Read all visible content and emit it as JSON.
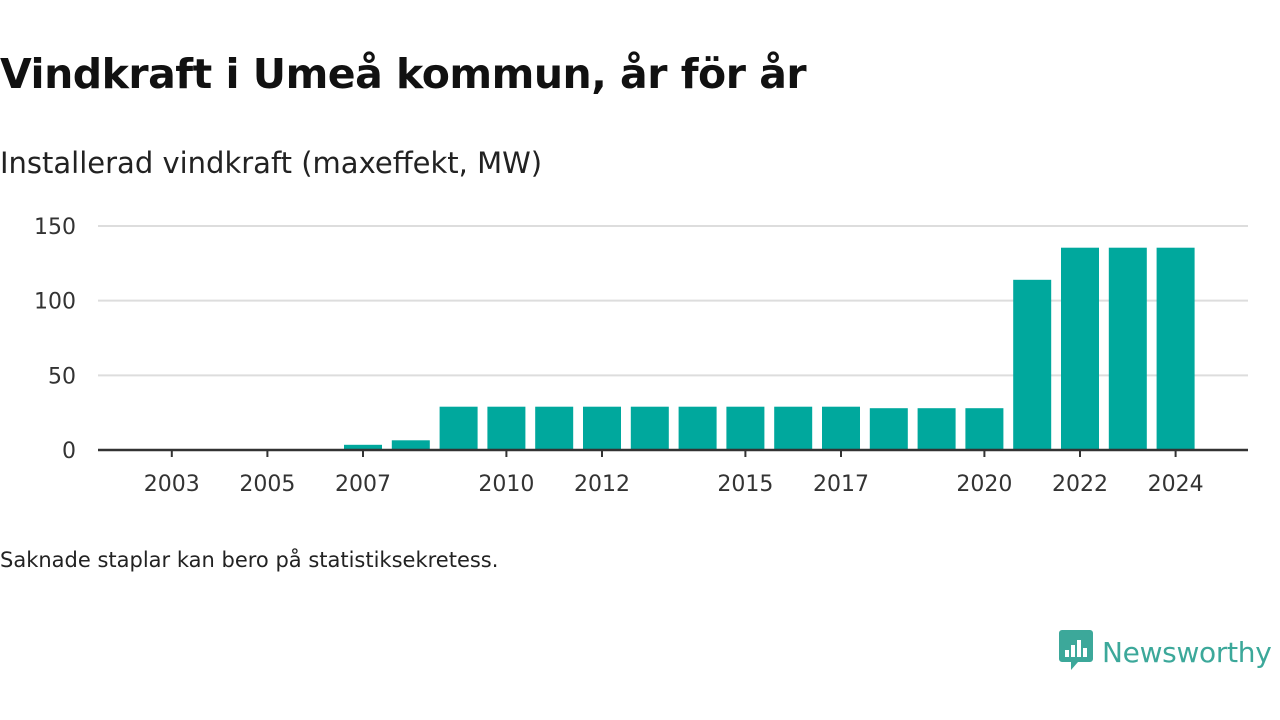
{
  "title": "Vindkraft i Umeå kommun, år för år",
  "subtitle": "Installerad vindkraft (maxeffekt, MW)",
  "footnote": "Saknade staplar kan bero på statistiksekretess.",
  "brand": {
    "name": "Newsworthy",
    "icon": "newsworthy-logo-icon",
    "color": "#3ca89a"
  },
  "colors": {
    "bar": "#00a89d",
    "grid": "#dddddd",
    "axis": "#333333"
  },
  "chart_data": {
    "type": "bar",
    "ylabel": "Installerad vindkraft (maxeffekt, MW)",
    "ylim": [
      0,
      150
    ],
    "yticks": [
      0,
      50,
      100,
      150
    ],
    "grid": true,
    "categories": [
      "2002",
      "2003",
      "2004",
      "2005",
      "2006",
      "2007",
      "2008",
      "2009",
      "2010",
      "2011",
      "2012",
      "2013",
      "2014",
      "2015",
      "2016",
      "2017",
      "2018",
      "2019",
      "2020",
      "2021",
      "2022",
      "2023",
      "2024"
    ],
    "xtick_labels": [
      "2003",
      "2005",
      "2007",
      "2010",
      "2012",
      "2015",
      "2017",
      "2020",
      "2022",
      "2024"
    ],
    "values": [
      0,
      0,
      0,
      0,
      0,
      3.5,
      6.5,
      29,
      29,
      29,
      29,
      29,
      29,
      29,
      29,
      29,
      28,
      28,
      28,
      114,
      135.5,
      135.5,
      135.5
    ]
  }
}
